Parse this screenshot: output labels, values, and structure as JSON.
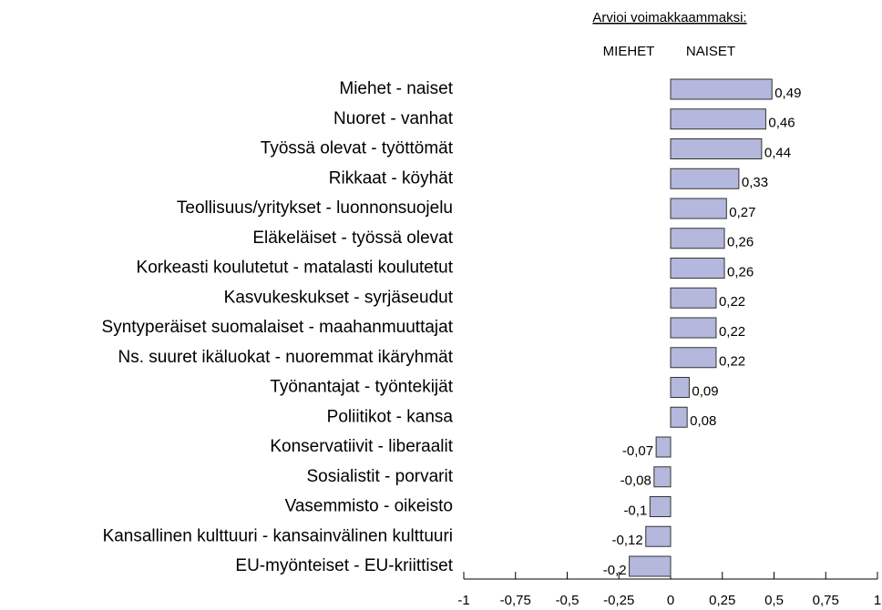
{
  "chart_data": {
    "type": "barh",
    "annotation": "Arvioi voimakkaammaksi:",
    "left_label": "MIEHET",
    "right_label": "NAISET",
    "categories": [
      "Miehet - naiset",
      "Nuoret - vanhat",
      "Työssä olevat - työttömät",
      "Rikkaat - köyhät",
      "Teollisuus/yritykset - luonnonsuojelu",
      "Eläkeläiset - työssä olevat",
      "Korkeasti koulutetut - matalasti koulutetut",
      "Kasvukeskukset - syrjäseudut",
      "Syntyperäiset suomalaiset - maahanmuuttajat",
      "Ns. suuret ikäluokat - nuoremmat ikäryhmät",
      "Työnantajat - työntekijät",
      "Poliitikot - kansa",
      "Konservatiivit - liberaalit",
      "Sosialistit - porvarit",
      "Vasemmisto - oikeisto",
      "Kansallinen kulttuuri - kansainvälinen kulttuuri",
      "EU-myönteiset - EU-kriittiset"
    ],
    "values": [
      0.49,
      0.46,
      0.44,
      0.33,
      0.27,
      0.26,
      0.26,
      0.22,
      0.22,
      0.22,
      0.09,
      0.08,
      -0.07,
      -0.08,
      -0.1,
      -0.12,
      -0.2
    ],
    "value_labels": [
      "0,49",
      "0,46",
      "0,44",
      "0,33",
      "0,27",
      "0,26",
      "0,26",
      "0,22",
      "0,22",
      "0,22",
      "0,09",
      "0,08",
      "-0,07",
      "-0,08",
      "-0,1",
      "-0,12",
      "-0,2"
    ],
    "color": "#b4b8dc",
    "xlim": [
      -1,
      1
    ],
    "xticks": [
      -1,
      {
        "value": -0.75,
        "label": "-0,75"
      },
      {
        "value": -0.5,
        "label": "-0,5"
      },
      {
        "value": -0.25,
        "label": "-0,25"
      },
      0,
      {
        "value": 0.25,
        "label": "0,25"
      },
      {
        "value": 0.5,
        "label": "0,5"
      },
      {
        "value": 0.75,
        "label": "0,75"
      },
      1
    ]
  }
}
